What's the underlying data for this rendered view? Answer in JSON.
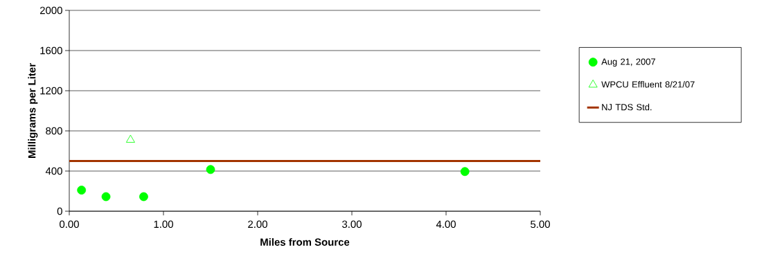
{
  "chart_data": {
    "type": "scatter",
    "xlabel": "Miles from Source",
    "ylabel": "Milligrams per Liter",
    "xlim": [
      0,
      5
    ],
    "ylim": [
      0,
      2000
    ],
    "xticks": [
      {
        "value": 0,
        "label": "0.00"
      },
      {
        "value": 1,
        "label": "1.00"
      },
      {
        "value": 2,
        "label": "2.00"
      },
      {
        "value": 3,
        "label": "3.00"
      },
      {
        "value": 4,
        "label": "4.00"
      },
      {
        "value": 5,
        "label": "5.00"
      }
    ],
    "yticks": [
      0,
      400,
      800,
      1200,
      1600,
      2000
    ],
    "grid": "y",
    "legend": "right",
    "series": [
      {
        "name": "Aug 21, 2007",
        "marker": "circle",
        "color": "#00ff00",
        "x": [
          0.13,
          0.39,
          0.79,
          1.5,
          4.2
        ],
        "values": [
          210,
          145,
          145,
          415,
          395
        ]
      },
      {
        "name": "WPCU Effluent 8/21/07",
        "marker": "triangle",
        "color": "#00ff00",
        "x": [
          0.65
        ],
        "values": [
          710
        ]
      },
      {
        "name": "NJ TDS Std.",
        "type": "line",
        "marker": "none",
        "color": "#a33400",
        "x": [
          0,
          5
        ],
        "values": [
          500,
          500
        ]
      }
    ]
  }
}
